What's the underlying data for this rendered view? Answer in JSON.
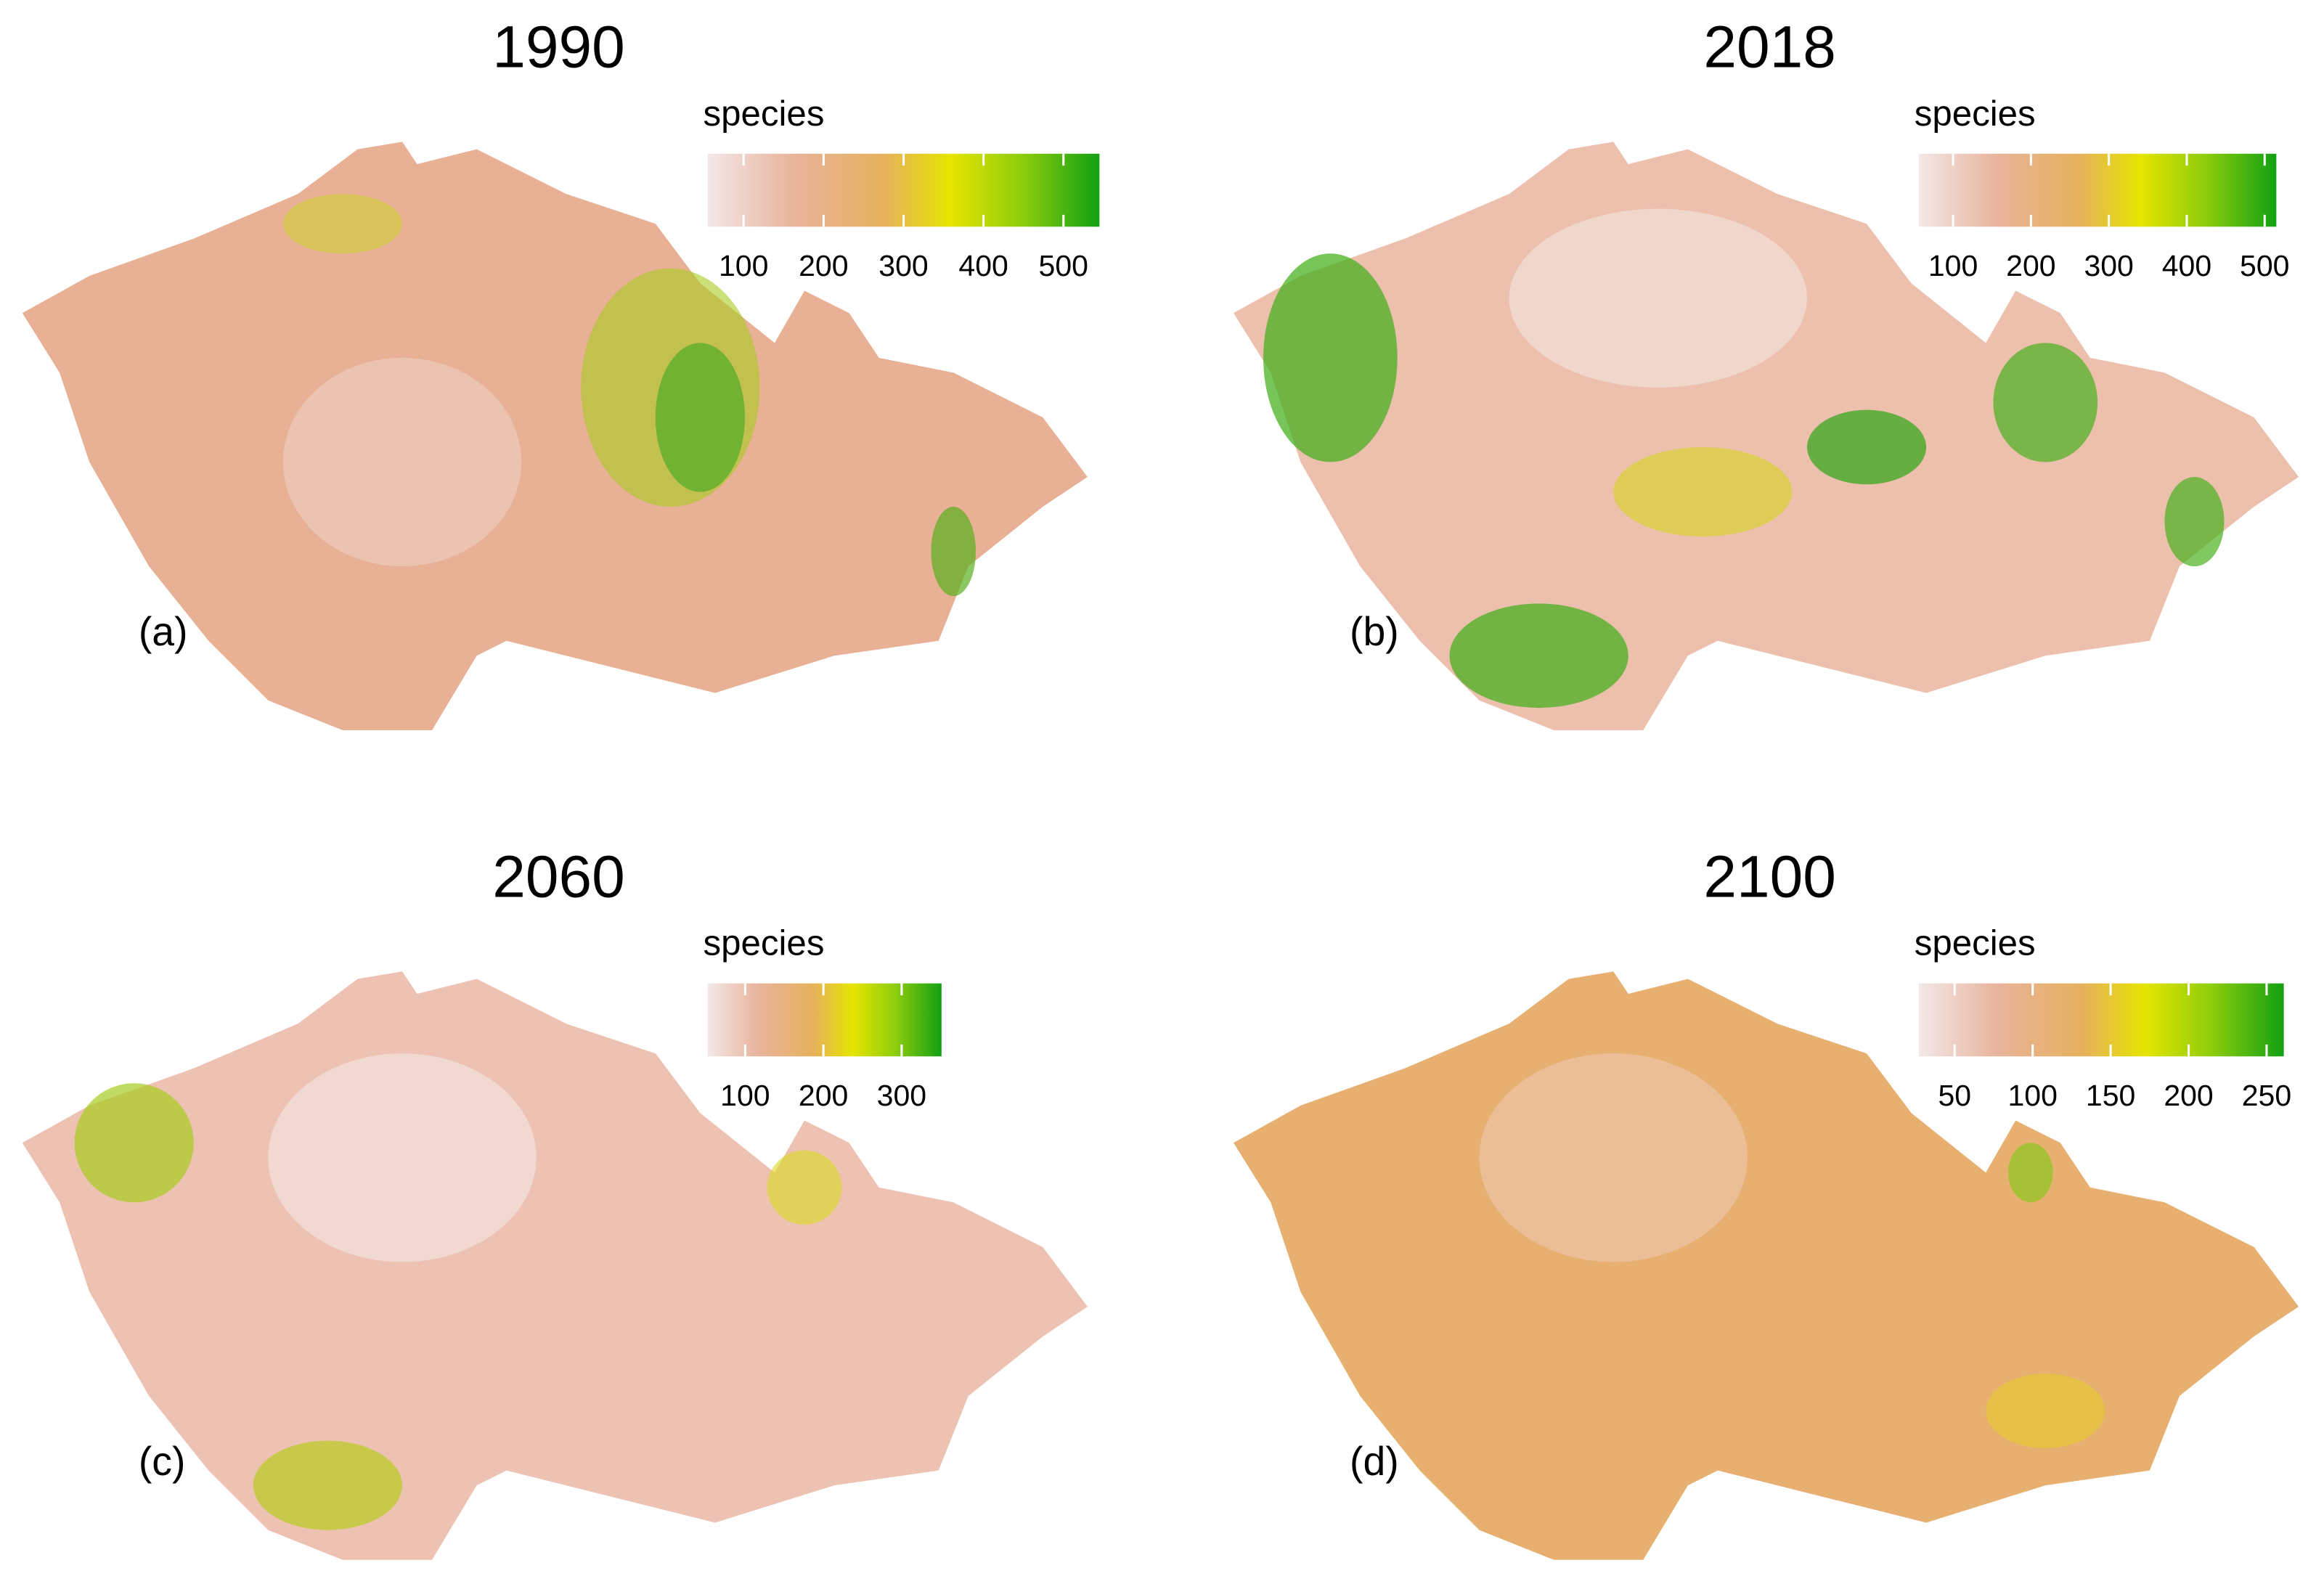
{
  "panels": [
    {
      "title": "1990",
      "label": "(a)",
      "legend_title": "species",
      "lim": [
        55,
        545
      ],
      "ticks": [
        100,
        200,
        300,
        400,
        500
      ]
    },
    {
      "title": "2018",
      "label": "(b)",
      "legend_title": "species",
      "lim": [
        56,
        515
      ],
      "ticks": [
        100,
        200,
        300,
        400,
        500
      ]
    },
    {
      "title": "2060",
      "label": "(c)",
      "legend_title": "species",
      "lim": [
        52,
        351
      ],
      "ticks": [
        100,
        200,
        300
      ]
    },
    {
      "title": "2100",
      "label": "(d)",
      "legend_title": "species",
      "lim": [
        27,
        261
      ],
      "ticks": [
        50,
        100,
        150,
        200,
        250
      ]
    }
  ]
}
